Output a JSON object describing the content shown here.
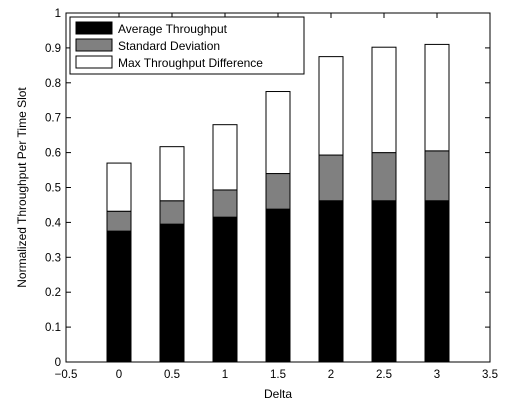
{
  "chart_data": {
    "type": "bar",
    "stacked": true,
    "x": [
      0,
      0.5,
      1,
      1.5,
      2,
      2.5,
      3
    ],
    "series": [
      {
        "name": "Average Throughput",
        "color": "#000000",
        "values": [
          0.375,
          0.395,
          0.415,
          0.438,
          0.462,
          0.462,
          0.462
        ]
      },
      {
        "name": "Standard Deviation",
        "color": "#808080",
        "values": [
          0.057,
          0.067,
          0.078,
          0.102,
          0.131,
          0.138,
          0.143
        ]
      },
      {
        "name": "Max Throughput Difference",
        "color": "#ffffff",
        "values": [
          0.138,
          0.155,
          0.187,
          0.235,
          0.282,
          0.302,
          0.305
        ]
      }
    ],
    "xlabel": "Delta",
    "ylabel": "Normalized Throughput Per Time Slot",
    "xlim": [
      -0.5,
      3.5
    ],
    "ylim": [
      0,
      1
    ],
    "xticks": [
      "−0.5",
      "0",
      "0.5",
      "1",
      "1.5",
      "2",
      "2.5",
      "3",
      "3.5"
    ],
    "yticks": [
      "0",
      "0.1",
      "0.2",
      "0.3",
      "0.4",
      "0.5",
      "0.6",
      "0.7",
      "0.8",
      "0.9",
      "1"
    ],
    "legend_position": "top-left",
    "grid": false
  }
}
